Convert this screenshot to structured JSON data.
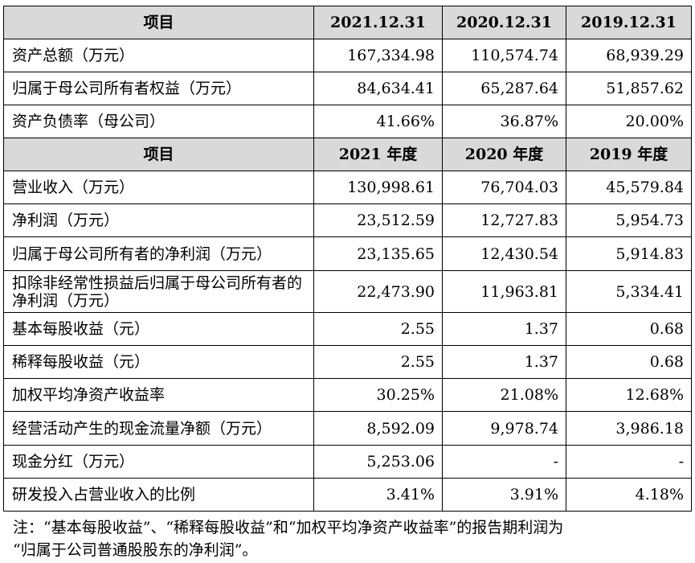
{
  "table": {
    "section1_header": [
      "项目",
      "2021.12.31",
      "2020.12.31",
      "2019.12.31"
    ],
    "section1_rows": [
      {
        "label": "资产总额（万元）",
        "values": [
          "167,334.98",
          "110,574.74",
          "68,939.29"
        ]
      },
      {
        "label": "归属于母公司所有者权益（万元）",
        "values": [
          "84,634.41",
          "65,287.64",
          "51,857.62"
        ]
      },
      {
        "label": "资产负债率（母公司）",
        "values": [
          "41.66%",
          "36.87%",
          "20.00%"
        ]
      }
    ],
    "section2_header": [
      "项目",
      "2021 年度",
      "2020 年度",
      "2019 年度"
    ],
    "section2_rows": [
      {
        "label": "营业收入（万元）",
        "values": [
          "130,998.61",
          "76,704.03",
          "45,579.84"
        ]
      },
      {
        "label": "净利润（万元）",
        "values": [
          "23,512.59",
          "12,727.83",
          "5,954.73"
        ]
      },
      {
        "label": "归属于母公司所有者的净利润（万元）",
        "values": [
          "23,135.65",
          "12,430.54",
          "5,914.83"
        ]
      },
      {
        "label": "扣除非经常性损益后归属于母公司所有者的净利润（万元）",
        "values": [
          "22,473.90",
          "11,963.81",
          "5,334.41"
        ]
      },
      {
        "label": "基本每股收益（元）",
        "values": [
          "2.55",
          "1.37",
          "0.68"
        ]
      },
      {
        "label": "稀释每股收益（元）",
        "values": [
          "2.55",
          "1.37",
          "0.68"
        ]
      },
      {
        "label": "加权平均净资产收益率",
        "values": [
          "30.25%",
          "21.08%",
          "12.68%"
        ]
      },
      {
        "label": "经营活动产生的现金流量净额（万元）",
        "values": [
          "8,592.09",
          "9,978.74",
          "3,986.18"
        ]
      },
      {
        "label": "现金分红（万元）",
        "values": [
          "5,253.06",
          "-",
          "-"
        ]
      },
      {
        "label": "研发投入占营业收入的比例",
        "values": [
          "3.41%",
          "3.91%",
          "4.18%"
        ]
      }
    ]
  },
  "note": {
    "line1": "注：“基本每股收益”、“稀释每股收益”和“加权平均净资产收益率”的报告期利润为",
    "line2": "“归属于公司普通股股东的净利润”。"
  }
}
